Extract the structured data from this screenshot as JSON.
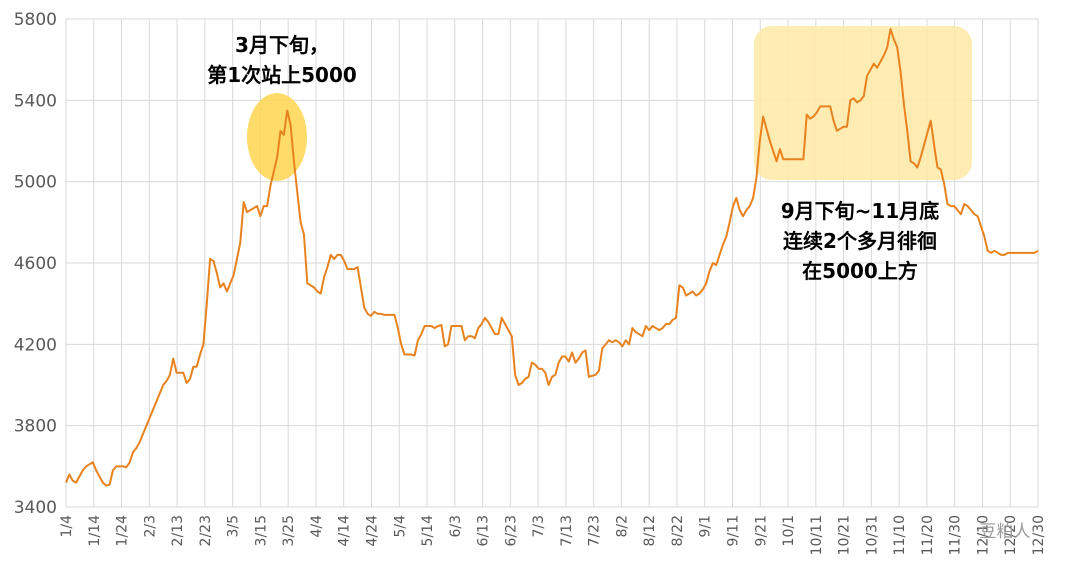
{
  "chart_data": {
    "type": "line",
    "title": "",
    "xlabel": "",
    "ylabel": "",
    "ylim": [
      3400,
      5800
    ],
    "yticks": [
      3400,
      3800,
      4200,
      4600,
      5000,
      5400,
      5800
    ],
    "xtick_labels": [
      "1/4",
      "1/14",
      "1/24",
      "2/3",
      "2/13",
      "2/23",
      "3/5",
      "3/15",
      "3/25",
      "4/4",
      "4/14",
      "4/24",
      "5/4",
      "5/14",
      "6/3",
      "6/13",
      "6/23",
      "7/3",
      "7/13",
      "7/23",
      "8/2",
      "8/12",
      "8/22",
      "9/1",
      "9/11",
      "9/21",
      "10/1",
      "10/11",
      "10/21",
      "10/31",
      "11/10",
      "11/20",
      "11/30",
      "12/10",
      "12/20",
      "12/30"
    ],
    "grid": true,
    "legend": "none",
    "line_color": "#E8821E",
    "series": [
      {
        "values": [
          3520,
          3560,
          3530,
          3520,
          3550,
          3580,
          3600,
          3610,
          3620,
          3580,
          3550,
          3520,
          3505,
          3510,
          3580,
          3600,
          3600,
          3600,
          3595,
          3620,
          3670,
          3690,
          3720,
          3760,
          3800,
          3840,
          3880,
          3920,
          3960,
          4000,
          4020,
          4050,
          4130,
          4060,
          4060,
          4060,
          4010,
          4030,
          4090,
          4090,
          4150,
          4200,
          4400,
          4620,
          4610,
          4550,
          4480,
          4500,
          4460,
          4500,
          4540,
          4620,
          4700,
          4900,
          4850,
          4860,
          4870,
          4880,
          4830,
          4880,
          4880,
          4980,
          5050,
          5120,
          5250,
          5230,
          5350,
          5280,
          5100,
          4950,
          4800,
          4740,
          4500,
          4490,
          4480,
          4460,
          4450,
          4530,
          4580,
          4640,
          4620,
          4640,
          4640,
          4610,
          4570,
          4570,
          4570,
          4580,
          4480,
          4380,
          4350,
          4340,
          4360,
          4350,
          4350,
          4345,
          4345,
          4345,
          4345,
          4280,
          4200,
          4150,
          4150,
          4150,
          4145,
          4220,
          4250,
          4290,
          4290,
          4290,
          4280,
          4290,
          4295,
          4190,
          4200,
          4290,
          4290,
          4290,
          4290,
          4220,
          4240,
          4240,
          4230,
          4280,
          4300,
          4330,
          4310,
          4280,
          4250,
          4250,
          4330,
          4300,
          4270,
          4240,
          4050,
          4000,
          4010,
          4030,
          4040,
          4110,
          4100,
          4080,
          4080,
          4060,
          4000,
          4040,
          4050,
          4110,
          4140,
          4140,
          4115,
          4160,
          4110,
          4130,
          4160,
          4170,
          4040,
          4045,
          4050,
          4070,
          4180,
          4200,
          4220,
          4210,
          4220,
          4210,
          4190,
          4220,
          4200,
          4280,
          4260,
          4250,
          4240,
          4290,
          4270,
          4290,
          4280,
          4270,
          4280,
          4300,
          4300,
          4320,
          4330,
          4490,
          4480,
          4440,
          4450,
          4460,
          4440,
          4450,
          4470,
          4500,
          4560,
          4600,
          4590,
          4640,
          4690,
          4730,
          4800,
          4880,
          4920,
          4860,
          4830,
          4860,
          4880,
          4920,
          5020,
          5200,
          5320,
          5260,
          5200,
          5150,
          5100,
          5160,
          5110,
          5110,
          5110,
          5110,
          5110,
          5110,
          5110,
          5330,
          5310,
          5320,
          5340,
          5370,
          5370,
          5370,
          5370,
          5300,
          5250,
          5260,
          5270,
          5270,
          5400,
          5410,
          5390,
          5400,
          5420,
          5520,
          5550,
          5580,
          5560,
          5590,
          5620,
          5660,
          5750,
          5700,
          5660,
          5540,
          5380,
          5250,
          5100,
          5090,
          5070,
          5120,
          5180,
          5240,
          5300,
          5180,
          5070,
          5060,
          4990,
          4890,
          4880,
          4880,
          4860,
          4840,
          4890,
          4880,
          4860,
          4840,
          4830,
          4780,
          4730,
          4660,
          4650,
          4660,
          4650,
          4640,
          4640,
          4650,
          4650,
          4650,
          4650,
          4650,
          4650,
          4650,
          4650,
          4650,
          4660
        ],
        "color": "#E8821E"
      }
    ],
    "annotations": [
      {
        "lines": [
          "3月下旬，",
          "第1次站上5000"
        ],
        "highlight": "ellipse",
        "highlight_color": "#FFD54F"
      },
      {
        "lines": [
          "9月下旬~11月底",
          "连续2个多月徘徊",
          "在5000上方"
        ],
        "highlight": "rounded-rect",
        "highlight_color": "#FFE9A6"
      }
    ]
  },
  "watermark": "豆粕人"
}
